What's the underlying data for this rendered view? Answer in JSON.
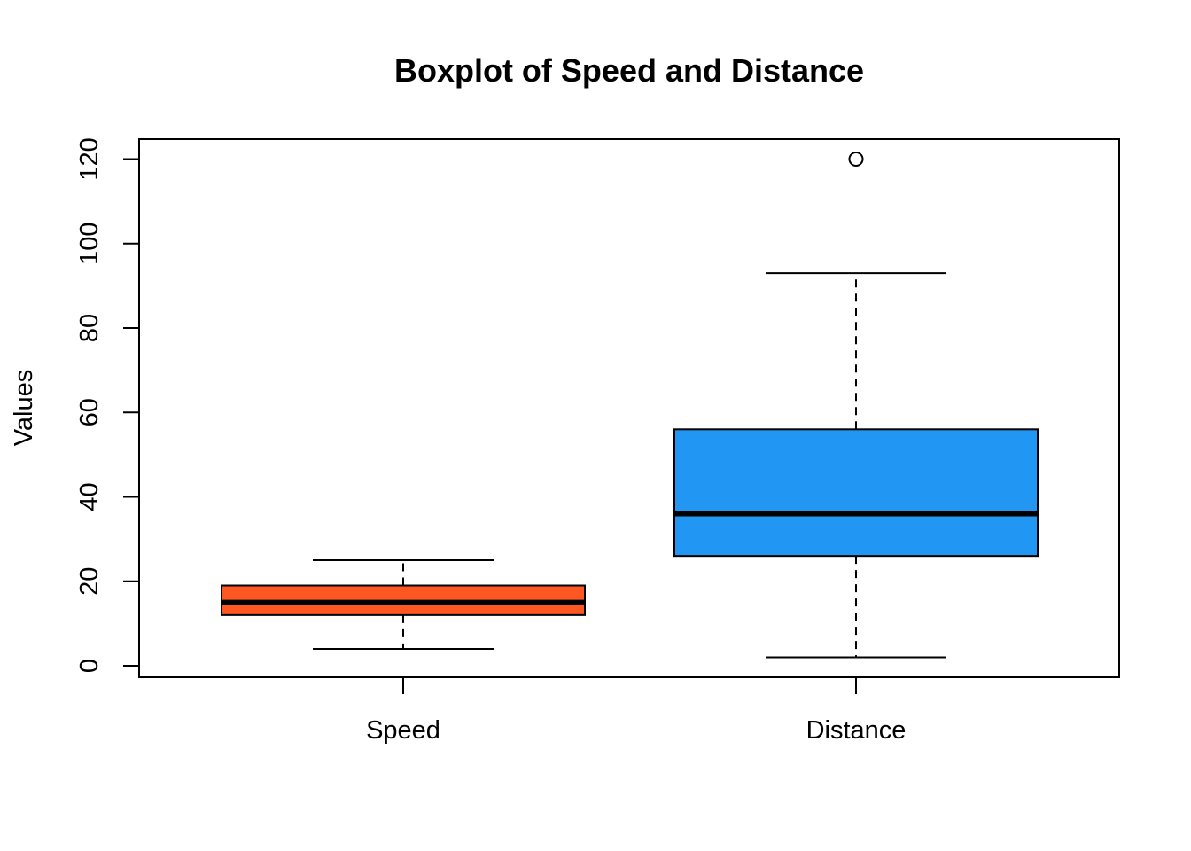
{
  "chart_data": {
    "type": "boxplot",
    "title": "Boxplot of Speed and Distance",
    "xlabel": "",
    "ylabel": "Values",
    "ylim": [
      0,
      125
    ],
    "yticks": [
      0,
      20,
      40,
      60,
      80,
      100,
      120
    ],
    "ytick_labels": [
      "0",
      "20",
      "40",
      "60",
      "80",
      "100",
      "120"
    ],
    "categories": [
      "Speed",
      "Distance"
    ],
    "boxes": [
      {
        "label": "Speed",
        "whisker_low": 4,
        "q1": 12,
        "median": 15,
        "q3": 19,
        "whisker_high": 25,
        "outliers": [],
        "color": "#FF5722"
      },
      {
        "label": "Distance",
        "whisker_low": 2,
        "q1": 26,
        "median": 36,
        "q3": 56,
        "whisker_high": 93,
        "outliers": [
          120
        ],
        "color": "#2196F3"
      }
    ],
    "grid": false,
    "legend": "none"
  }
}
